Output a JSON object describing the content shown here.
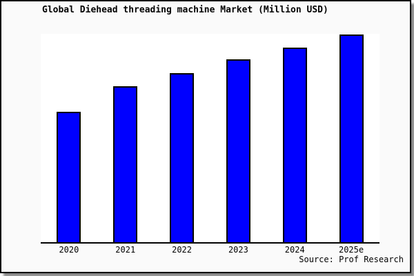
{
  "chart_data": {
    "type": "bar",
    "title": "Global Diehead threading machine Market (Million USD)",
    "categories": [
      "2020",
      "2021",
      "2022",
      "2023",
      "2024",
      "2025e"
    ],
    "values_pct_of_max": [
      62.8,
      75.1,
      81.4,
      87.9,
      93.7,
      100
    ],
    "value_note": "no numeric y-axis ticks, gridlines, or data labels visible; single series; values estimated as percent of tallest bar (2025e = 100)",
    "xlabel": "",
    "ylabel": "",
    "legend": "none",
    "grid": false,
    "bar_color": "#0000ff",
    "bar_border_color": "#000000",
    "source_note": "Source: Prof Research"
  },
  "colors": {
    "figure_background": "#fafafa",
    "plot_background": "#ffffff",
    "frame_border": "#000000",
    "text": "#000000",
    "bar_fill": "#0000ff",
    "shadow": "#8a8a8a"
  }
}
